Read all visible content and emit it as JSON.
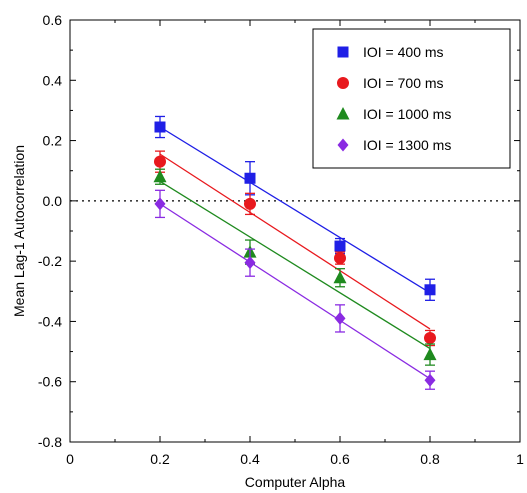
{
  "chart_data": {
    "type": "scatter",
    "title": "",
    "xlabel": "Computer Alpha",
    "ylabel": "Mean Lag-1 Autocorrelation",
    "xlim": [
      0,
      1
    ],
    "ylim": [
      -0.8,
      0.6
    ],
    "x_ticks": [
      0,
      0.2,
      0.4,
      0.6,
      0.8,
      1
    ],
    "x_tick_labels": [
      "0",
      "0.2",
      "0.4",
      "0.6",
      "0.8",
      "1"
    ],
    "y_ticks": [
      -0.8,
      -0.6,
      -0.4,
      -0.2,
      0.0,
      0.2,
      0.4,
      0.6
    ],
    "y_tick_labels": [
      "-0.8",
      "-0.6",
      "-0.4",
      "-0.2",
      "0.0",
      "0.2",
      "0.4",
      "0.6"
    ],
    "reference_line": {
      "y": 0.0,
      "style": "dotted"
    },
    "legend_position": "top-right",
    "grid": false,
    "x": [
      0.2,
      0.4,
      0.6,
      0.8
    ],
    "series": [
      {
        "name": "IOI = 400 ms",
        "marker": "square",
        "color": "#1f1fe6",
        "values": [
          0.245,
          0.075,
          -0.15,
          -0.295
        ],
        "error": [
          0.035,
          0.055,
          0.025,
          0.035
        ],
        "fit": [
          0.245,
          0.055,
          -0.125,
          -0.305
        ]
      },
      {
        "name": "IOI = 700 ms",
        "marker": "circle",
        "color": "#e8191e",
        "values": [
          0.13,
          -0.01,
          -0.19,
          -0.455
        ],
        "error": [
          0.035,
          0.035,
          0.02,
          0.025
        ],
        "fit": [
          0.155,
          -0.035,
          -0.23,
          -0.425
        ]
      },
      {
        "name": "IOI = 1000 ms",
        "marker": "triangle",
        "color": "#1f8a1f",
        "values": [
          0.08,
          -0.17,
          -0.255,
          -0.51
        ],
        "error": [
          0.025,
          0.04,
          0.03,
          0.035
        ],
        "fit": [
          0.065,
          -0.12,
          -0.305,
          -0.49
        ]
      },
      {
        "name": "IOI = 1300 ms",
        "marker": "diamond",
        "color": "#8a2be2",
        "values": [
          -0.01,
          -0.205,
          -0.39,
          -0.595
        ],
        "error": [
          0.045,
          0.045,
          0.045,
          0.03
        ],
        "fit": [
          -0.01,
          -0.2,
          -0.395,
          -0.59
        ]
      }
    ]
  }
}
